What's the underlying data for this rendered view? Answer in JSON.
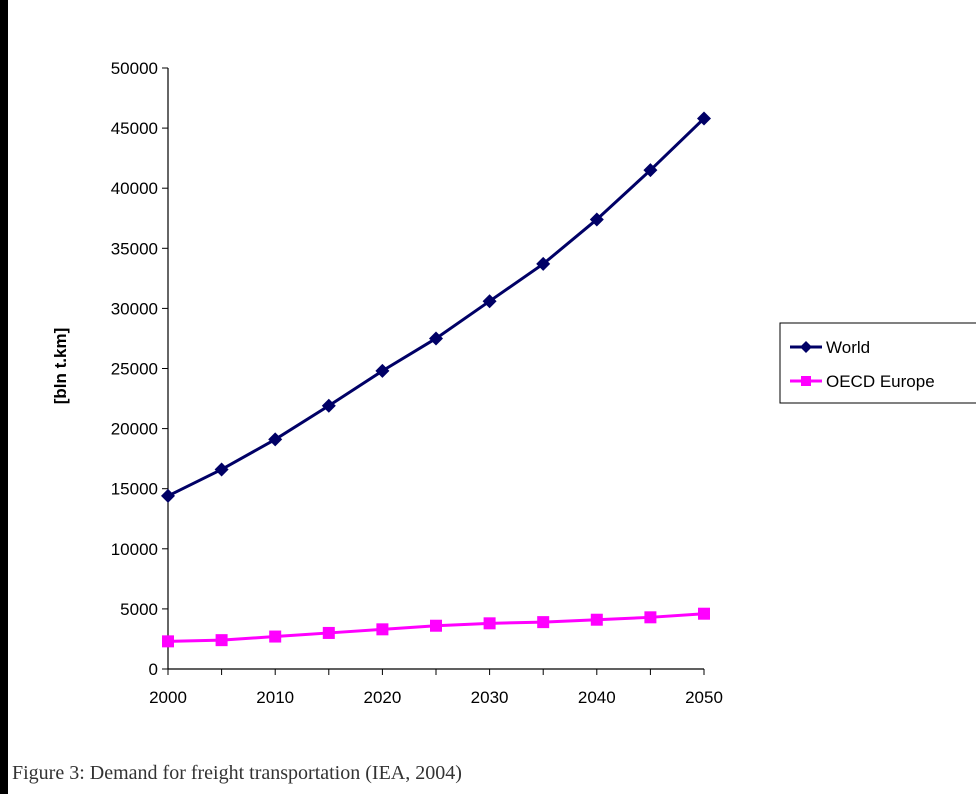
{
  "chart_data": {
    "type": "line",
    "title": "",
    "xlabel": "",
    "ylabel": "[bln t.km]",
    "x": [
      2000,
      2005,
      2010,
      2015,
      2020,
      2025,
      2030,
      2035,
      2040,
      2045,
      2050
    ],
    "x_ticks": [
      2000,
      2010,
      2020,
      2030,
      2040,
      2050
    ],
    "y_ticks": [
      0,
      5000,
      10000,
      15000,
      20000,
      25000,
      30000,
      35000,
      40000,
      45000,
      50000
    ],
    "xlim": [
      2000,
      2050
    ],
    "ylim": [
      0,
      50000
    ],
    "grid": false,
    "legend_position": "right",
    "series": [
      {
        "name": "World",
        "color": "#000066",
        "marker": "diamond",
        "values": [
          14400,
          16600,
          19100,
          21900,
          24800,
          27500,
          30600,
          33700,
          37400,
          41500,
          45800
        ]
      },
      {
        "name": "OECD Europe",
        "color": "#ff00ff",
        "marker": "square",
        "values": [
          2300,
          2400,
          2700,
          3000,
          3300,
          3600,
          3800,
          3900,
          4100,
          4300,
          4600
        ]
      }
    ]
  },
  "caption": "Figure 3: Demand for freight transportation (IEA, 2004)"
}
